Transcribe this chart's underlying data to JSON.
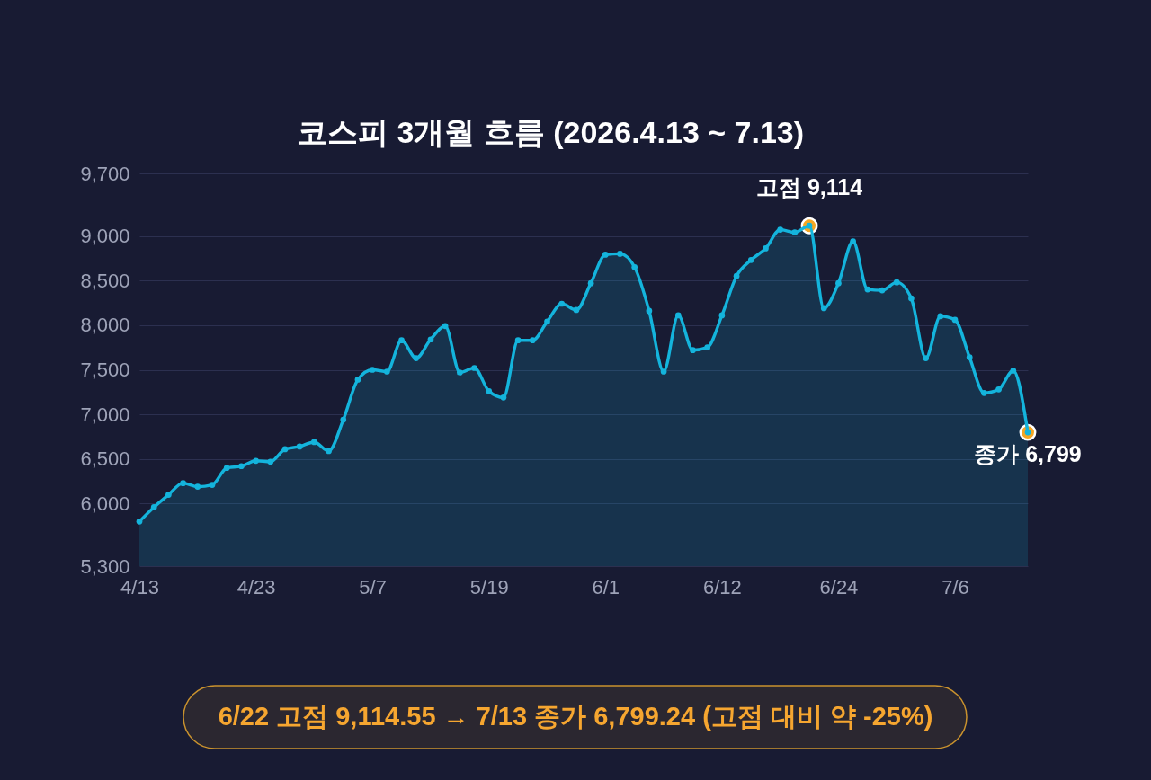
{
  "chart_data": {
    "type": "area",
    "title": "코스피 3개월 흐름 (2026.4.13 ~ 7.13)",
    "categories": [
      "4/13",
      null,
      null,
      null,
      null,
      null,
      null,
      null,
      "4/23",
      null,
      null,
      null,
      null,
      null,
      null,
      null,
      "5/7",
      null,
      null,
      null,
      null,
      null,
      null,
      null,
      "5/19",
      null,
      null,
      null,
      null,
      null,
      null,
      null,
      "6/1",
      null,
      null,
      null,
      null,
      null,
      null,
      null,
      "6/12",
      null,
      null,
      null,
      null,
      null,
      null,
      null,
      "6/24",
      null,
      null,
      null,
      null,
      null,
      null,
      null,
      "7/6",
      null,
      null,
      null,
      null,
      null
    ],
    "series": [
      {
        "color": "#14b4dc",
        "values": [
          5800,
          5960,
          6100,
          6230,
          6190,
          6210,
          6400,
          6420,
          6480,
          6470,
          6610,
          6640,
          6690,
          6590,
          6940,
          7390,
          7500,
          7480,
          7830,
          7630,
          7840,
          7990,
          7470,
          7520,
          7260,
          7190,
          7830,
          7830,
          8040,
          8240,
          8170,
          8470,
          8790,
          8800,
          8650,
          8160,
          7480,
          8110,
          7720,
          7750,
          8110,
          8550,
          8730,
          8860,
          9070,
          9040,
          9114,
          8190,
          8470,
          8940,
          8400,
          8390,
          8480,
          8300,
          7630,
          8100,
          8060,
          7640,
          7240,
          7280,
          7490,
          6799
        ]
      },
      {
        "type": "scatter",
        "color": "#f5a623",
        "values": [
          null,
          null,
          null,
          null,
          null,
          null,
          null,
          null,
          null,
          null,
          null,
          null,
          null,
          null,
          null,
          null,
          null,
          null,
          null,
          null,
          null,
          null,
          null,
          null,
          null,
          null,
          null,
          null,
          null,
          null,
          null,
          null,
          null,
          null,
          null,
          null,
          null,
          null,
          null,
          null,
          null,
          null,
          null,
          null,
          null,
          null,
          9114,
          null,
          null,
          null,
          null,
          null,
          null,
          null,
          null,
          null,
          null,
          null,
          null,
          null,
          null,
          6799
        ],
        "value_labels": [
          null,
          null,
          null,
          null,
          null,
          null,
          null,
          null,
          null,
          null,
          null,
          null,
          null,
          null,
          null,
          null,
          null,
          null,
          null,
          null,
          null,
          null,
          null,
          null,
          null,
          null,
          null,
          null,
          null,
          null,
          null,
          null,
          null,
          null,
          null,
          null,
          null,
          null,
          null,
          null,
          null,
          null,
          null,
          null,
          null,
          null,
          "고점 9,114",
          null,
          null,
          null,
          null,
          null,
          null,
          null,
          null,
          null,
          null,
          null,
          null,
          null,
          null,
          "종가 6,799"
        ]
      }
    ],
    "ylim": [
      5300,
      9700
    ],
    "yticks": [
      {
        "value": 5300,
        "label": "5,300"
      },
      {
        "value": 6000,
        "label": "6,000"
      },
      {
        "value": 6500,
        "label": "6,500"
      },
      {
        "value": 7000,
        "label": "7,000"
      },
      {
        "value": 7500,
        "label": "7,500"
      },
      {
        "value": 8000,
        "label": "8,000"
      },
      {
        "value": 8500,
        "label": "8,500"
      },
      {
        "value": 9000,
        "label": "9,000"
      },
      {
        "value": 9700,
        "label": "9,700"
      }
    ],
    "grid": "y",
    "marker": "circle",
    "annotations": [
      "6/22 고점 9,114.55 → 7/13 종가 6,799.24 (고점 대비 약 -25%)"
    ]
  }
}
